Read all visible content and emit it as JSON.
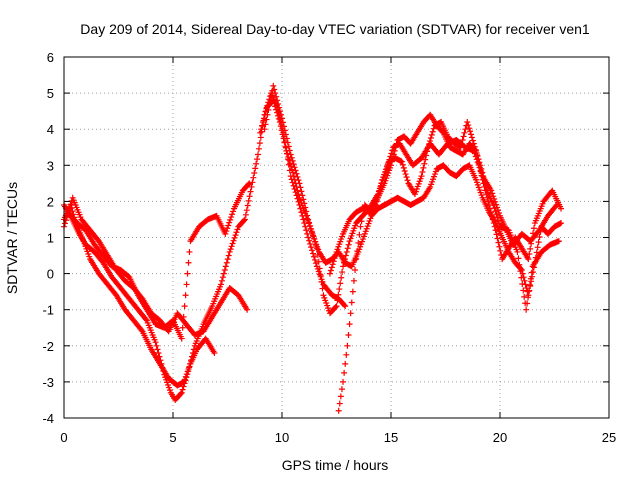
{
  "chart_data": {
    "type": "scatter",
    "title": "Day 209 of 2014, Sidereal Day-to-day VTEC variation (SDTVAR) for receiver ven1",
    "xlabel": "GPS time / hours",
    "ylabel": "SDTVAR / TECUs",
    "xlim": [
      0,
      25
    ],
    "ylim": [
      -4,
      6
    ],
    "x_ticks": [
      "0",
      "5",
      "10",
      "15",
      "20",
      "25"
    ],
    "y_ticks": [
      "-4",
      "-3",
      "-2",
      "-1",
      "0",
      "1",
      "2",
      "3",
      "4",
      "5",
      "6"
    ],
    "grid": true,
    "marker": "+",
    "color": "#ff0000",
    "series": [
      {
        "points": [
          [
            0,
            1.9
          ],
          [
            0.3,
            1.6
          ],
          [
            0.7,
            1.1
          ],
          [
            1.0,
            0.8
          ],
          [
            1.4,
            0.6
          ],
          [
            1.8,
            0.3
          ],
          [
            2.2,
            -0.1
          ],
          [
            2.6,
            -0.4
          ],
          [
            3.0,
            -0.7
          ],
          [
            3.4,
            -1.0
          ],
          [
            3.8,
            -1.3
          ],
          [
            4.2,
            -1.9
          ],
          [
            4.6,
            -2.8
          ],
          [
            4.9,
            -3.3
          ],
          [
            5.1,
            -3.5
          ],
          [
            5.4,
            -3.3
          ],
          [
            5.7,
            -2.7
          ],
          [
            6.0,
            -2.0
          ],
          [
            6.4,
            -1.4
          ],
          [
            6.8,
            -0.9
          ],
          [
            7.2,
            -0.3
          ],
          [
            7.6,
            0.6
          ],
          [
            8.0,
            1.3
          ],
          [
            8.3,
            1.5
          ],
          [
            8.6,
            2.4
          ],
          [
            8.9,
            3.3
          ],
          [
            9.2,
            4.4
          ],
          [
            9.5,
            5.0
          ],
          [
            9.8,
            4.6
          ],
          [
            10.1,
            3.8
          ],
          [
            10.4,
            2.7
          ],
          [
            10.8,
            1.9
          ],
          [
            11.2,
            1.0
          ],
          [
            11.6,
            0.2
          ],
          [
            11.9,
            -0.3
          ],
          [
            12.3,
            -0.6
          ],
          [
            12.6,
            -0.7
          ],
          [
            12.9,
            -0.9
          ]
        ]
      },
      {
        "points": [
          [
            0,
            1.5
          ],
          [
            0.3,
            1.9
          ],
          [
            0.6,
            1.3
          ],
          [
            0.9,
            0.9
          ],
          [
            1.2,
            0.4
          ],
          [
            1.6,
            0.0
          ],
          [
            2.0,
            -0.3
          ],
          [
            2.4,
            -0.6
          ],
          [
            2.8,
            -1.0
          ],
          [
            3.2,
            -1.3
          ],
          [
            3.6,
            -1.6
          ],
          [
            4.0,
            -2.1
          ],
          [
            4.4,
            -2.5
          ],
          [
            4.8,
            -2.9
          ],
          [
            5.2,
            -3.1
          ],
          [
            5.5,
            -3.0
          ],
          [
            5.8,
            -2.5
          ],
          [
            6.1,
            -2.1
          ],
          [
            6.5,
            -1.8
          ],
          [
            6.9,
            -2.2
          ]
        ]
      },
      {
        "points": [
          [
            0,
            1.3
          ],
          [
            0.4,
            2.1
          ],
          [
            0.8,
            1.5
          ],
          [
            1.2,
            1.2
          ],
          [
            1.6,
            0.9
          ],
          [
            2.0,
            0.5
          ],
          [
            2.4,
            0.1
          ],
          [
            2.8,
            -0.2
          ],
          [
            3.2,
            -0.4
          ],
          [
            3.6,
            -0.7
          ],
          [
            4.0,
            -1.1
          ],
          [
            4.4,
            -1.3
          ],
          [
            4.8,
            -1.6
          ],
          [
            5.2,
            -1.1
          ],
          [
            5.6,
            -1.4
          ],
          [
            6.0,
            -1.7
          ],
          [
            6.4,
            -1.6
          ],
          [
            6.8,
            -1.2
          ],
          [
            7.2,
            -0.8
          ],
          [
            7.6,
            -0.4
          ],
          [
            8.0,
            -0.6
          ],
          [
            8.4,
            -1.0
          ]
        ]
      },
      {
        "points": [
          [
            0.2,
            1.7
          ],
          [
            0.6,
            1.4
          ],
          [
            1.0,
            1.2
          ],
          [
            1.4,
            0.8
          ],
          [
            1.8,
            0.5
          ],
          [
            2.2,
            0.2
          ],
          [
            2.6,
            0.1
          ],
          [
            3.0,
            -0.1
          ],
          [
            3.4,
            -0.6
          ],
          [
            3.8,
            -1.0
          ],
          [
            4.2,
            -1.4
          ],
          [
            4.6,
            -1.5
          ],
          [
            5.0,
            -1.3
          ],
          [
            5.4,
            -1.8
          ],
          [
            5.8,
            0.9
          ],
          [
            6.2,
            1.3
          ],
          [
            6.6,
            1.5
          ],
          [
            7.0,
            1.6
          ],
          [
            7.4,
            1.1
          ],
          [
            7.8,
            1.8
          ],
          [
            8.2,
            2.3
          ],
          [
            8.5,
            2.5
          ]
        ]
      },
      {
        "points": [
          [
            9.0,
            3.9
          ],
          [
            9.3,
            4.6
          ],
          [
            9.6,
            4.8
          ],
          [
            9.9,
            4.2
          ],
          [
            10.2,
            3.4
          ],
          [
            10.5,
            2.8
          ],
          [
            10.8,
            2.1
          ],
          [
            11.1,
            1.6
          ],
          [
            11.4,
            1.1
          ],
          [
            11.7,
            0.6
          ],
          [
            12.0,
            0.3
          ],
          [
            12.3,
            0.4
          ],
          [
            12.6,
            0.6
          ],
          [
            12.9,
            0.3
          ],
          [
            13.2,
            0.2
          ],
          [
            13.5,
            0.6
          ],
          [
            13.8,
            1.1
          ],
          [
            14.1,
            1.6
          ],
          [
            14.4,
            1.8
          ],
          [
            14.7,
            1.9
          ],
          [
            15.0,
            2.0
          ],
          [
            15.3,
            2.1
          ],
          [
            15.6,
            2.0
          ],
          [
            15.9,
            1.9
          ],
          [
            16.2,
            2.0
          ],
          [
            16.5,
            2.1
          ],
          [
            16.8,
            2.4
          ],
          [
            17.1,
            2.9
          ],
          [
            17.4,
            3.0
          ],
          [
            17.7,
            2.8
          ],
          [
            18.0,
            2.7
          ],
          [
            18.3,
            2.9
          ],
          [
            18.6,
            3.0
          ],
          [
            18.9,
            2.6
          ],
          [
            19.2,
            2.1
          ],
          [
            19.5,
            1.7
          ],
          [
            19.8,
            1.4
          ],
          [
            20.1,
            1.0
          ],
          [
            20.4,
            0.6
          ],
          [
            20.7,
            0.3
          ],
          [
            21.0,
            0.1
          ],
          [
            21.3,
            -0.6
          ],
          [
            21.6,
            0.3
          ],
          [
            21.9,
            1.3
          ],
          [
            22.2,
            1.1
          ],
          [
            22.5,
            1.3
          ],
          [
            22.8,
            1.4
          ]
        ]
      },
      {
        "points": [
          [
            9.2,
            4.0
          ],
          [
            9.6,
            5.2
          ],
          [
            10.0,
            4.3
          ],
          [
            10.4,
            3.3
          ],
          [
            10.8,
            2.5
          ],
          [
            11.2,
            1.5
          ],
          [
            11.6,
            0.7
          ],
          [
            11.9,
            -0.6
          ],
          [
            12.2,
            -1.1
          ],
          [
            12.5,
            -0.9
          ],
          [
            12.8,
            0.2
          ],
          [
            13.1,
            0.9
          ],
          [
            13.4,
            1.4
          ],
          [
            13.7,
            1.6
          ],
          [
            14.0,
            1.8
          ],
          [
            14.4,
            2.2
          ],
          [
            14.8,
            2.9
          ],
          [
            15.1,
            3.5
          ],
          [
            15.4,
            3.6
          ],
          [
            15.7,
            3.3
          ],
          [
            16.0,
            3.0
          ],
          [
            16.4,
            3.2
          ],
          [
            16.8,
            3.6
          ],
          [
            17.2,
            3.3
          ],
          [
            17.6,
            3.6
          ],
          [
            18.0,
            3.7
          ],
          [
            18.4,
            3.5
          ],
          [
            18.8,
            3.4
          ],
          [
            19.2,
            2.7
          ],
          [
            19.6,
            2.3
          ],
          [
            20.0,
            1.6
          ],
          [
            20.3,
            1.2
          ],
          [
            20.6,
            0.8
          ],
          [
            21.0,
            1.1
          ],
          [
            21.4,
            0.9
          ],
          [
            21.8,
            1.2
          ],
          [
            22.2,
            1.6
          ],
          [
            22.6,
            1.9
          ]
        ]
      },
      {
        "points": [
          [
            12.2,
            0.0
          ],
          [
            12.5,
            0.6
          ],
          [
            12.8,
            1.1
          ],
          [
            13.1,
            1.5
          ],
          [
            13.4,
            1.7
          ],
          [
            13.7,
            1.8
          ],
          [
            14.0,
            1.7
          ],
          [
            14.3,
            1.9
          ],
          [
            14.6,
            2.6
          ],
          [
            14.9,
            3.1
          ],
          [
            15.2,
            3.2
          ],
          [
            15.5,
            3.1
          ],
          [
            15.8,
            2.5
          ],
          [
            16.1,
            2.2
          ],
          [
            16.4,
            2.7
          ],
          [
            16.7,
            3.5
          ],
          [
            17.0,
            4.1
          ],
          [
            17.3,
            4.2
          ],
          [
            17.6,
            3.8
          ],
          [
            17.9,
            3.6
          ],
          [
            18.2,
            3.5
          ],
          [
            18.5,
            4.2
          ],
          [
            18.8,
            3.6
          ],
          [
            19.1,
            3.0
          ],
          [
            19.4,
            2.3
          ],
          [
            19.7,
            1.9
          ],
          [
            20.0,
            1.3
          ],
          [
            20.4,
            1.2
          ],
          [
            20.8,
            0.6
          ],
          [
            21.2,
            -1.0
          ],
          [
            21.5,
            0.2
          ],
          [
            21.9,
            0.6
          ],
          [
            22.3,
            0.8
          ],
          [
            22.7,
            0.9
          ]
        ]
      },
      {
        "points": [
          [
            12.6,
            -3.8
          ],
          [
            12.8,
            -3.0
          ],
          [
            13.0,
            -2.0
          ],
          [
            13.2,
            -0.8
          ],
          [
            13.4,
            0.4
          ],
          [
            13.6,
            1.3
          ],
          [
            13.8,
            1.9
          ],
          [
            14.1,
            1.7
          ],
          [
            14.4,
            2.1
          ],
          [
            14.7,
            2.5
          ],
          [
            15.0,
            3.0
          ],
          [
            15.3,
            3.7
          ],
          [
            15.6,
            3.8
          ],
          [
            15.9,
            3.6
          ],
          [
            16.2,
            3.9
          ],
          [
            16.5,
            4.2
          ],
          [
            16.8,
            4.4
          ],
          [
            17.1,
            4.1
          ],
          [
            17.4,
            3.9
          ],
          [
            17.7,
            3.5
          ],
          [
            18.0,
            3.4
          ],
          [
            18.3,
            3.3
          ],
          [
            18.6,
            3.6
          ],
          [
            18.9,
            3.4
          ],
          [
            19.2,
            2.6
          ],
          [
            19.5,
            1.9
          ],
          [
            19.8,
            1.2
          ],
          [
            20.1,
            0.4
          ],
          [
            20.4,
            0.7
          ],
          [
            20.7,
            1.0
          ],
          [
            21.0,
            0.7
          ],
          [
            21.3,
            0.4
          ],
          [
            21.6,
            1.4
          ],
          [
            22.0,
            2.0
          ],
          [
            22.4,
            2.3
          ],
          [
            22.8,
            1.8
          ]
        ]
      }
    ]
  }
}
